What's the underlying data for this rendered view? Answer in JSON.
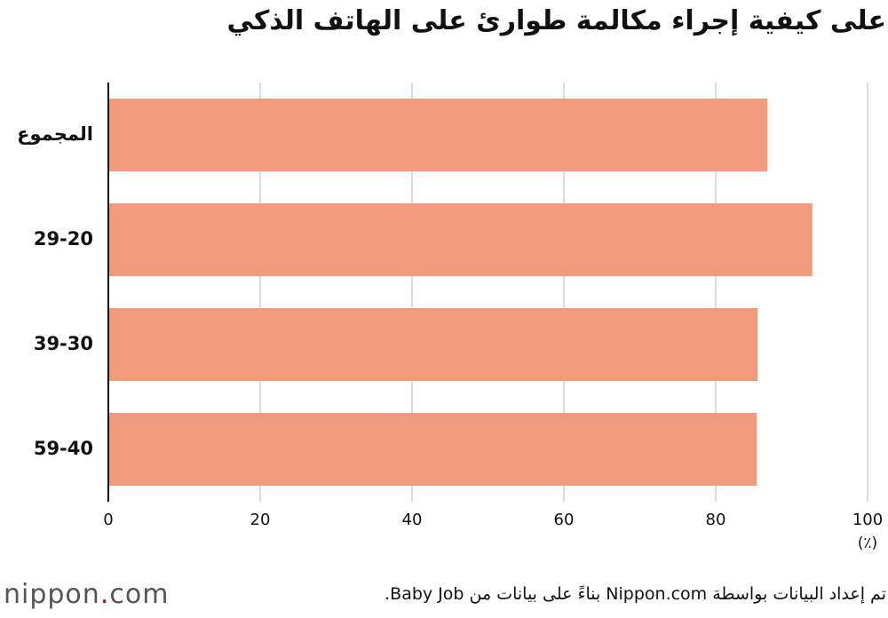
{
  "chart_data": {
    "type": "bar",
    "orientation": "horizontal",
    "title": "على كيفية إجراء مكالمة طوارئ على الهاتف الذكي",
    "categories": [
      "المجموع",
      "29-20",
      "39-30",
      "59-40"
    ],
    "values": [
      86.7,
      92.6,
      85.4,
      85.3
    ],
    "color": "#f19b7c",
    "xlim": [
      0,
      100
    ],
    "xticks": [
      0,
      20,
      40,
      60,
      80,
      100
    ],
    "x_unit": "(٪)",
    "grid": true,
    "source": "تم إعداد البيانات بواسطة Nippon.com بناءً على بيانات من Baby Job.",
    "logo": {
      "name": "nippon",
      "dot": ".",
      "suffix": "com"
    }
  }
}
